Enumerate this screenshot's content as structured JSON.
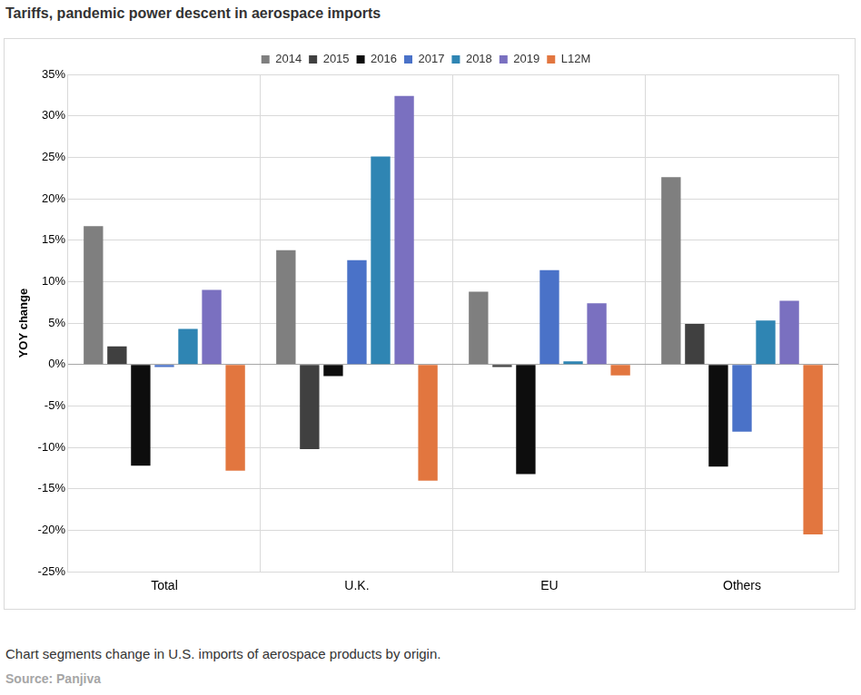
{
  "chart_data": {
    "type": "bar",
    "title": "Tariffs, pandemic power descent in aerospace imports",
    "caption": "Chart segments change in U.S. imports of aerospace products by origin.",
    "source": "Source: Panjiva",
    "y_label": "YOY change",
    "categories": [
      "Total",
      "U.K.",
      "EU",
      "Others"
    ],
    "series": [
      {
        "name": "2014",
        "color": "#7f7f7f",
        "values": [
          16.7,
          13.8,
          8.8,
          22.6
        ]
      },
      {
        "name": "2015",
        "color": "#404040",
        "values": [
          2.2,
          -10.2,
          -0.3,
          4.9
        ]
      },
      {
        "name": "2016",
        "color": "#0d0d0d",
        "values": [
          -12.2,
          -1.4,
          -13.2,
          -12.3
        ]
      },
      {
        "name": "2017",
        "color": "#4a72c8",
        "values": [
          -0.3,
          12.6,
          11.4,
          -8.1
        ]
      },
      {
        "name": "2018",
        "color": "#2f85b3",
        "values": [
          4.3,
          25.1,
          0.4,
          5.3
        ]
      },
      {
        "name": "2019",
        "color": "#7a70c0",
        "values": [
          9.0,
          32.4,
          7.4,
          7.7
        ]
      },
      {
        "name": "L12M",
        "color": "#e2763f",
        "values": [
          -12.8,
          -14.0,
          -1.3,
          -20.5
        ]
      }
    ],
    "ylim": [
      -25,
      35
    ],
    "yticks": [
      {
        "value": -25,
        "label": "-25%"
      },
      {
        "value": -20,
        "label": "-20%"
      },
      {
        "value": -15,
        "label": "-15%"
      },
      {
        "value": -10,
        "label": "-10%"
      },
      {
        "value": -5,
        "label": "-5%"
      },
      {
        "value": 0,
        "label": "0%"
      },
      {
        "value": 5,
        "label": "5%"
      },
      {
        "value": 10,
        "label": "10%"
      },
      {
        "value": 15,
        "label": "15%"
      },
      {
        "value": 20,
        "label": "20%"
      },
      {
        "value": 25,
        "label": "25%"
      },
      {
        "value": 30,
        "label": "30%"
      },
      {
        "value": 35,
        "label": "35%"
      }
    ],
    "grid": true,
    "legend": "top"
  }
}
